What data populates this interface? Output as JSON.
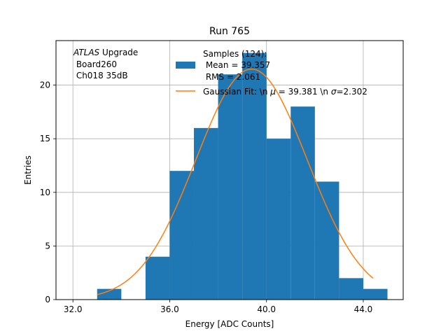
{
  "chart_data": {
    "type": "bar",
    "title": "Run 765",
    "xlabel": "Energy [ADC Counts]",
    "ylabel": "Entries",
    "xlim": [
      31.3,
      45.65
    ],
    "ylim": [
      0,
      24.15
    ],
    "xticks": [
      32.0,
      36.0,
      40.0,
      44.0
    ],
    "xtick_labels": [
      "32.0",
      "36.0",
      "40.0",
      "44.0"
    ],
    "yticks": [
      0,
      5,
      10,
      15,
      20
    ],
    "ytick_labels": [
      "0",
      "5",
      "10",
      "15",
      "20"
    ],
    "grid": true,
    "bins": [
      {
        "x0": 33,
        "x1": 34,
        "count": 1
      },
      {
        "x0": 34,
        "x1": 35,
        "count": 0
      },
      {
        "x0": 35,
        "x1": 36,
        "count": 4
      },
      {
        "x0": 36,
        "x1": 37,
        "count": 12
      },
      {
        "x0": 37,
        "x1": 38,
        "count": 16
      },
      {
        "x0": 38,
        "x1": 39,
        "count": 21
      },
      {
        "x0": 39,
        "x1": 40,
        "count": 23
      },
      {
        "x0": 40,
        "x1": 41,
        "count": 15
      },
      {
        "x0": 41,
        "x1": 42,
        "count": 18
      },
      {
        "x0": 42,
        "x1": 43,
        "count": 11
      },
      {
        "x0": 43,
        "x1": 44,
        "count": 2
      },
      {
        "x0": 44,
        "x1": 45,
        "count": 1
      }
    ],
    "fit": {
      "mu": 39.381,
      "sigma": 2.302,
      "amplitude": 21.5,
      "x_range": [
        33,
        44.4
      ]
    },
    "annotation": {
      "italic": "ATLAS",
      "suffix": " Upgrade",
      "line2": " Board260",
      "line3": " Ch018 35dB"
    },
    "legend": {
      "placement": "top-center",
      "hist_label_lines": [
        "Samples (124):",
        " Mean = 39.357",
        " RMS = 2.061"
      ],
      "fit_label_pre": "Gaussian Fit: \\n ",
      "fit_mu_symbol": "μ",
      "fit_label_mid": " = 39.381 \\n ",
      "fit_sigma_symbol": "σ",
      "fit_label_post": "=2.302"
    },
    "colors": {
      "hist": "#1f77b4",
      "fit": "#ff7f0e",
      "grid": "#b0b0b0"
    }
  }
}
